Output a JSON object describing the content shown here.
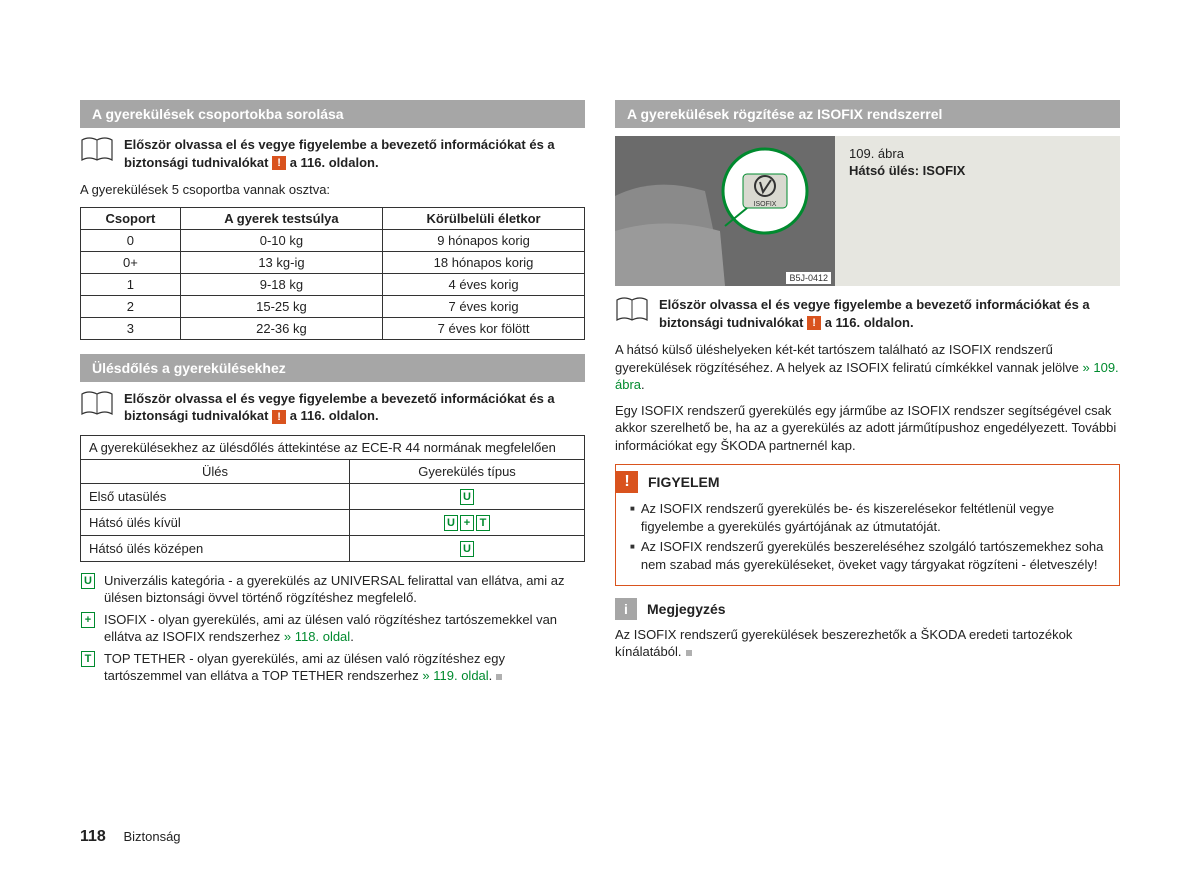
{
  "colors": {
    "header_bg": "#a6a6a6",
    "text": "#222222",
    "accent_green": "#008a2e",
    "accent_orange": "#d9531e",
    "figure_bg": "#e6e6e0",
    "grey_square": "#b0b0b0"
  },
  "left": {
    "sec1": {
      "title": "A gyerekülések csoportokba sorolása",
      "intro": "Először olvassa el és vegye figyelembe a bevezető információkat és a biztonsági tudnivalókat",
      "intro_tail": " a 116. oldalon.",
      "lead": "A gyerekülések 5 csoportba vannak osztva:",
      "table": {
        "headers": [
          "Csoport",
          "A gyerek testsúlya",
          "Körülbelüli életkor"
        ],
        "rows": [
          [
            "0",
            "0-10 kg",
            "9 hónapos korig"
          ],
          [
            "0+",
            "13 kg-ig",
            "18 hónapos korig"
          ],
          [
            "1",
            "9-18 kg",
            "4 éves korig"
          ],
          [
            "2",
            "15-25 kg",
            "7 éves korig"
          ],
          [
            "3",
            "22-36 kg",
            "7 éves kor fölött"
          ]
        ]
      }
    },
    "sec2": {
      "title": "Ülésdőlés a gyerekülésekhez",
      "intro": "Először olvassa el és vegye figyelembe a bevezető információkat és a biztonsági tudnivalókat",
      "intro_tail": " a 116. oldalon.",
      "table": {
        "caption": "A gyerekülésekhez az ülésdőlés áttekintése az ECE-R 44 normának megfelelően",
        "hdr_seat": "Ülés",
        "hdr_type": "Gyerekülés típus",
        "rows": [
          {
            "seat": "Első utasülés",
            "tags": [
              "U"
            ]
          },
          {
            "seat": "Hátsó ülés kívül",
            "tags": [
              "U",
              "+",
              "T"
            ]
          },
          {
            "seat": "Hátsó ülés középen",
            "tags": [
              "U"
            ]
          }
        ]
      },
      "legend": [
        {
          "tag": "U",
          "text": "Univerzális kategória - a gyerekülés az UNIVERSAL felirattal van ellátva, ami az ülésen biztonsági övvel történő rögzítéshez megfelelő."
        },
        {
          "tag": "+",
          "text": "ISOFIX - olyan gyerekülés, ami az ülésen való rögzítéshez tartószemekkel van ellátva az ISOFIX rendszerhez ",
          "link": "» 118. oldal",
          "tail": "."
        },
        {
          "tag": "T",
          "text": "TOP TETHER - olyan gyerekülés, ami az ülésen való rögzítéshez egy tartószemmel van ellátva a TOP TETHER rendszerhez ",
          "link": "» 119. oldal",
          "tail": "."
        }
      ]
    }
  },
  "right": {
    "sec1": {
      "title": "A gyerekülések rögzítése az ISOFIX rendszerrel",
      "figure": {
        "num": "109. ábra",
        "title": "Hátsó ülés: ISOFIX",
        "label": "ISOFIX",
        "id": "B5J-0412"
      },
      "intro": "Először olvassa el és vegye figyelembe a bevezető információkat és a biztonsági tudnivalókat",
      "intro_tail": " a 116. oldalon.",
      "p1a": "A hátsó külső üléshelyeken két-két tartószem található az ISOFIX rendszerű gyerekülések rögzítéséhez. A helyek az ISOFIX feliratú címkékkel vannak jelölve ",
      "p1link": "» 109. ábra",
      "p1b": ".",
      "p2": "Egy ISOFIX rendszerű gyerekülés egy járműbe az ISOFIX rendszer segítségével csak akkor szerelhető be, ha az a gyerekülés az adott járműtípushoz engedélyezett. További információkat egy ŠKODA partnernél kap.",
      "alert": {
        "title": "FIGYELEM",
        "items": [
          "Az ISOFIX rendszerű gyerekülés be- és kiszerelésekor feltétlenül vegye figyelembe a gyerekülés gyártójának az útmutatóját.",
          "Az ISOFIX rendszerű gyerekülés beszereléséhez szolgáló tartószemekhez soha nem szabad más gyereküléseket, öveket vagy tárgyakat rögzíteni - életveszély!"
        ]
      },
      "note": {
        "title": "Megjegyzés",
        "text": "Az ISOFIX rendszerű gyerekülések beszerezhetők a ŠKODA eredeti tartozékok kínálatából."
      }
    }
  },
  "footer": {
    "page": "118",
    "section": "Biztonság"
  }
}
